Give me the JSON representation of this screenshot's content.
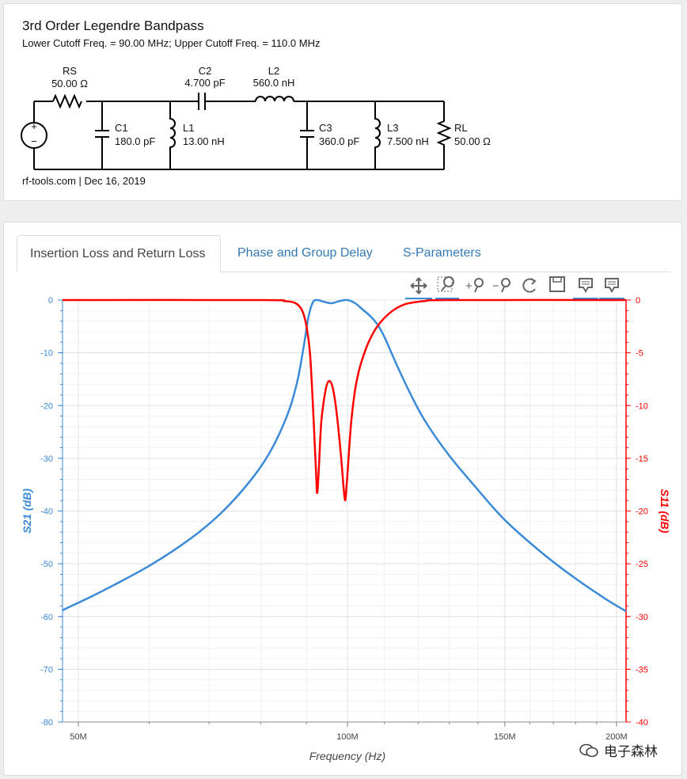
{
  "header": {
    "title": "3rd Order Legendre Bandpass",
    "subtitle": "Lower Cutoff Freq. = 90.00 MHz; Upper Cutoff Freq. = 110.0 MHz",
    "credit": "rf-tools.com | Dec 16, 2019"
  },
  "schematic": {
    "rs": {
      "name": "RS",
      "value": "50.00 Ω"
    },
    "c1": {
      "name": "C1",
      "value": "180.0 pF"
    },
    "l1": {
      "name": "L1",
      "value": "13.00 nH"
    },
    "c2": {
      "name": "C2",
      "value": "4.700 pF"
    },
    "l2": {
      "name": "L2",
      "value": "560.0 nH"
    },
    "c3": {
      "name": "C3",
      "value": "360.0 pF"
    },
    "l3": {
      "name": "L3",
      "value": "7.500 nH"
    },
    "rl": {
      "name": "RL",
      "value": "50.00 Ω"
    },
    "source_plus": "+",
    "source_minus": "−"
  },
  "tabs": [
    {
      "label": "Insertion Loss and Return Loss",
      "active": true
    },
    {
      "label": "Phase and Group Delay",
      "active": false
    },
    {
      "label": "S-Parameters",
      "active": false
    }
  ],
  "toolbar": [
    "pan-icon",
    "box-zoom-icon",
    "zoom-in-icon",
    "zoom-out-icon",
    "reset-icon",
    "save-icon",
    "hover-icon",
    "hover-icon"
  ],
  "watermark": "电子森林",
  "chart_data": {
    "type": "line",
    "xlabel": "Frequency (Hz)",
    "x_scale": "log",
    "xlim": [
      48000000,
      205000000
    ],
    "x_ticks": [
      {
        "value": 50000000,
        "label": "50M"
      },
      {
        "value": 100000000,
        "label": "100M"
      },
      {
        "value": 150000000,
        "label": "150M"
      },
      {
        "value": 200000000,
        "label": "200M"
      }
    ],
    "y_left": {
      "label": "S21 (dB)",
      "ylim": [
        -80,
        0
      ],
      "ticks": [
        0,
        -10,
        -20,
        -30,
        -40,
        -50,
        -60,
        -70,
        -80
      ],
      "color": "#3a8ad8"
    },
    "y_right": {
      "label": "S11 (dB)",
      "ylim": [
        -40,
        0
      ],
      "ticks": [
        0,
        -5,
        -10,
        -15,
        -20,
        -25,
        -30,
        -35,
        -40
      ],
      "color": "#ff0000"
    },
    "grid": true,
    "series": [
      {
        "name": "S21 (dB)",
        "axis": "left",
        "color": "#3a8ad8",
        "points": [
          [
            48000000,
            -58.8
          ],
          [
            52000000,
            -56.0
          ],
          [
            56000000,
            -53.2
          ],
          [
            60000000,
            -50.4
          ],
          [
            64000000,
            -47.4
          ],
          [
            68000000,
            -44.2
          ],
          [
            72000000,
            -40.6
          ],
          [
            76000000,
            -36.4
          ],
          [
            80000000,
            -31.6
          ],
          [
            83000000,
            -27.0
          ],
          [
            86000000,
            -21.0
          ],
          [
            88000000,
            -15.0
          ],
          [
            89500000,
            -8.0
          ],
          [
            90500000,
            -3.0
          ],
          [
            91500000,
            -0.4
          ],
          [
            92500000,
            0.0
          ],
          [
            94000000,
            -0.3
          ],
          [
            96000000,
            -0.6
          ],
          [
            98000000,
            -0.2
          ],
          [
            100000000,
            0.0
          ],
          [
            102000000,
            -0.6
          ],
          [
            104000000,
            -1.8
          ],
          [
            106000000,
            -3.0
          ],
          [
            108000000,
            -4.6
          ],
          [
            110000000,
            -7.0
          ],
          [
            113000000,
            -11.5
          ],
          [
            117000000,
            -17.0
          ],
          [
            122000000,
            -22.8
          ],
          [
            130000000,
            -29.5
          ],
          [
            140000000,
            -36.0
          ],
          [
            150000000,
            -41.7
          ],
          [
            165000000,
            -47.9
          ],
          [
            180000000,
            -52.8
          ],
          [
            195000000,
            -56.8
          ],
          [
            205000000,
            -59.0
          ]
        ]
      },
      {
        "name": "S11 (dB)",
        "axis": "right",
        "color": "#ff0000",
        "points": [
          [
            48000000,
            0.0
          ],
          [
            80000000,
            0.0
          ],
          [
            85000000,
            -0.1
          ],
          [
            87500000,
            -0.3
          ],
          [
            89000000,
            -1.0
          ],
          [
            90000000,
            -2.5
          ],
          [
            90800000,
            -5.0
          ],
          [
            91500000,
            -10.0
          ],
          [
            92200000,
            -16.0
          ],
          [
            92500000,
            -18.3
          ],
          [
            92900000,
            -16.0
          ],
          [
            93500000,
            -11.5
          ],
          [
            94500000,
            -8.6
          ],
          [
            95300000,
            -7.7
          ],
          [
            96200000,
            -8.2
          ],
          [
            97200000,
            -10.5
          ],
          [
            98300000,
            -14.5
          ],
          [
            99300000,
            -18.8
          ],
          [
            99800000,
            -17.5
          ],
          [
            101000000,
            -11.5
          ],
          [
            102500000,
            -7.5
          ],
          [
            105000000,
            -4.5
          ],
          [
            108000000,
            -2.5
          ],
          [
            112000000,
            -1.1
          ],
          [
            116000000,
            -0.4
          ],
          [
            122000000,
            -0.1
          ],
          [
            130000000,
            0.0
          ],
          [
            205000000,
            0.0
          ]
        ]
      }
    ]
  }
}
